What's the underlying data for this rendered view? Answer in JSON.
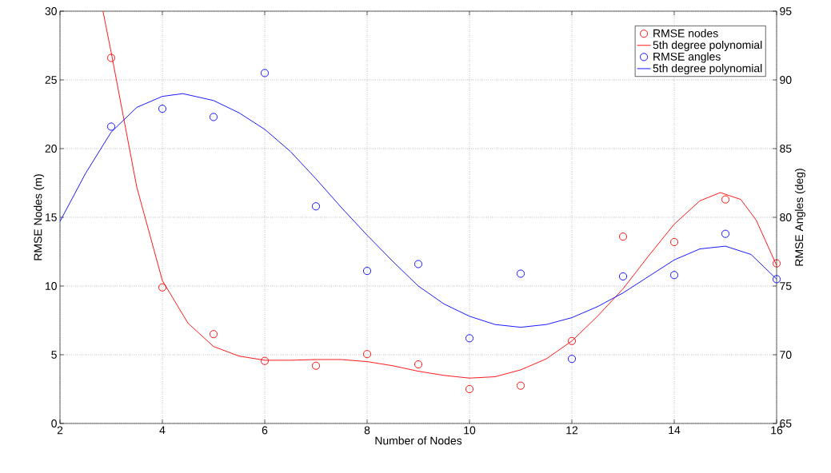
{
  "chart_data": {
    "type": "scatter",
    "xlabel": "Number of Nodes",
    "ylabel": "RMSE Nodes (m)",
    "y2label": "RMSE Angles (deg)",
    "xlim": [
      2,
      16
    ],
    "xticks": [
      2,
      4,
      6,
      8,
      10,
      12,
      14,
      16
    ],
    "ylim": [
      0,
      30
    ],
    "yticks": [
      0,
      5,
      10,
      15,
      20,
      25,
      30
    ],
    "y2lim": [
      65,
      95
    ],
    "y2ticks": [
      65,
      70,
      75,
      80,
      85,
      90,
      95
    ],
    "grid": true,
    "legend": "top right",
    "x": [
      3,
      4,
      5,
      6,
      7,
      8,
      9,
      10,
      11,
      12,
      13,
      14,
      15,
      16
    ],
    "series": [
      {
        "name": "RMSE nodes",
        "marker": "circle",
        "color": "#ff0000",
        "values": [
          26.6,
          9.9,
          6.5,
          4.55,
          4.2,
          5.05,
          4.3,
          2.5,
          2.75,
          6.0,
          13.6,
          13.2,
          16.3,
          11.65
        ]
      },
      {
        "name": "5th degree polynomial",
        "type": "line",
        "marker": "none",
        "color": "#ff0000",
        "x": [
          2.84,
          3,
          3.5,
          4,
          4.5,
          5,
          5.5,
          6,
          6.5,
          7,
          7.5,
          8,
          8.5,
          9,
          9.5,
          10,
          10.5,
          11,
          11.5,
          12,
          12.5,
          13,
          13.5,
          14,
          14.5,
          14.9,
          15.3,
          15.6,
          16
        ],
        "values": [
          30,
          27,
          17.2,
          10.4,
          7.3,
          5.6,
          4.9,
          4.6,
          4.6,
          4.65,
          4.65,
          4.5,
          4.2,
          3.8,
          3.5,
          3.3,
          3.4,
          3.9,
          4.7,
          6.0,
          7.8,
          9.8,
          12.2,
          14.5,
          16.2,
          16.8,
          16.3,
          14.8,
          11.5
        ]
      },
      {
        "name": "RMSE angles",
        "marker": "circle",
        "color": "#0000ff",
        "axis": "y2",
        "values": [
          86.6,
          87.9,
          87.3,
          90.5,
          80.8,
          76.1,
          76.6,
          71.2,
          75.9,
          69.7,
          75.7,
          75.8,
          78.8,
          75.5
        ]
      },
      {
        "name": "5th degree polynomial",
        "type": "line",
        "marker": "none",
        "color": "#0000ff",
        "axis": "y2",
        "x": [
          2,
          2.5,
          3,
          3.5,
          4,
          4.4,
          5,
          5.5,
          6,
          6.5,
          7,
          7.5,
          8,
          8.5,
          9,
          9.5,
          10,
          10.5,
          11,
          11.5,
          12,
          12.5,
          13,
          13.5,
          14,
          14.5,
          15,
          15.5,
          16
        ],
        "values": [
          79.7,
          83.2,
          86.2,
          88.0,
          88.8,
          89.0,
          88.5,
          87.6,
          86.4,
          84.8,
          82.8,
          80.7,
          78.7,
          76.8,
          75.0,
          73.7,
          72.8,
          72.2,
          72.0,
          72.2,
          72.7,
          73.5,
          74.5,
          75.7,
          76.9,
          77.7,
          77.9,
          77.3,
          75.5
        ]
      }
    ]
  }
}
